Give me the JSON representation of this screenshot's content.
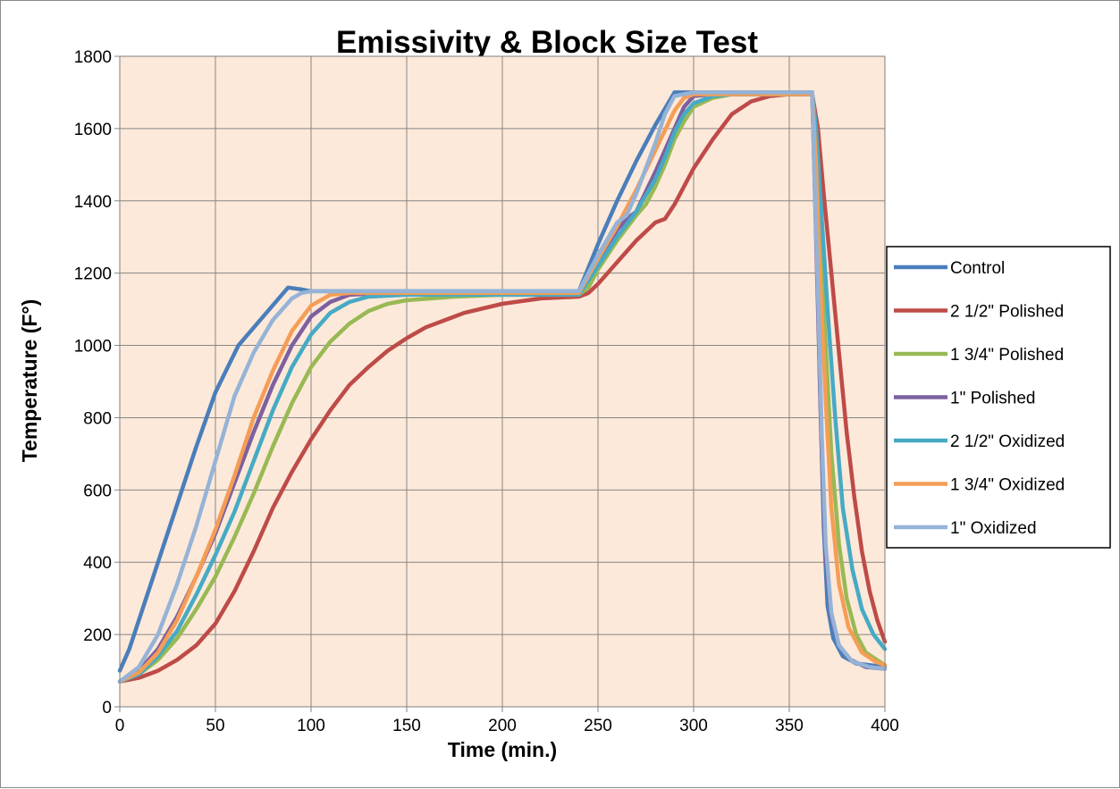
{
  "chart_data": {
    "type": "line",
    "title": "Emissivity & Block Size Test",
    "xlabel": "Time (min.)",
    "ylabel": "Temperature (F°)",
    "xlim": [
      0,
      400
    ],
    "ylim": [
      0,
      1800
    ],
    "xticks": [
      0,
      50,
      100,
      150,
      200,
      250,
      300,
      350,
      400
    ],
    "yticks": [
      0,
      200,
      400,
      600,
      800,
      1000,
      1200,
      1400,
      1600,
      1800
    ],
    "grid": true,
    "plot_background": "#fde9d9",
    "legend_position": "right",
    "series": [
      {
        "name": "Control",
        "color": "#4a7ebb",
        "points": [
          [
            0,
            100
          ],
          [
            5,
            160
          ],
          [
            10,
            240
          ],
          [
            20,
            400
          ],
          [
            30,
            560
          ],
          [
            40,
            720
          ],
          [
            50,
            870
          ],
          [
            62,
            1000
          ],
          [
            75,
            1080
          ],
          [
            88,
            1160
          ],
          [
            95,
            1155
          ],
          [
            100,
            1150
          ],
          [
            150,
            1150
          ],
          [
            200,
            1150
          ],
          [
            240,
            1150
          ],
          [
            250,
            1280
          ],
          [
            260,
            1400
          ],
          [
            270,
            1510
          ],
          [
            280,
            1610
          ],
          [
            290,
            1700
          ],
          [
            300,
            1700
          ],
          [
            350,
            1700
          ],
          [
            362,
            1700
          ],
          [
            364,
            1400
          ],
          [
            366,
            900
          ],
          [
            368,
            500
          ],
          [
            370,
            280
          ],
          [
            373,
            190
          ],
          [
            378,
            140
          ],
          [
            385,
            120
          ],
          [
            400,
            110
          ]
        ]
      },
      {
        "name": "2 1/2\" Polished",
        "color": "#be4b48",
        "points": [
          [
            0,
            70
          ],
          [
            10,
            80
          ],
          [
            20,
            100
          ],
          [
            30,
            130
          ],
          [
            40,
            170
          ],
          [
            50,
            230
          ],
          [
            60,
            320
          ],
          [
            70,
            430
          ],
          [
            80,
            550
          ],
          [
            90,
            650
          ],
          [
            100,
            740
          ],
          [
            110,
            820
          ],
          [
            120,
            890
          ],
          [
            130,
            940
          ],
          [
            140,
            985
          ],
          [
            150,
            1020
          ],
          [
            160,
            1050
          ],
          [
            180,
            1090
          ],
          [
            200,
            1115
          ],
          [
            220,
            1130
          ],
          [
            240,
            1135
          ],
          [
            245,
            1145
          ],
          [
            250,
            1170
          ],
          [
            260,
            1230
          ],
          [
            270,
            1290
          ],
          [
            280,
            1340
          ],
          [
            285,
            1350
          ],
          [
            290,
            1390
          ],
          [
            295,
            1440
          ],
          [
            300,
            1490
          ],
          [
            310,
            1570
          ],
          [
            320,
            1640
          ],
          [
            330,
            1675
          ],
          [
            340,
            1690
          ],
          [
            350,
            1695
          ],
          [
            362,
            1695
          ],
          [
            365,
            1600
          ],
          [
            368,
            1420
          ],
          [
            372,
            1200
          ],
          [
            376,
            980
          ],
          [
            380,
            760
          ],
          [
            384,
            580
          ],
          [
            388,
            430
          ],
          [
            392,
            320
          ],
          [
            396,
            240
          ],
          [
            400,
            180
          ]
        ]
      },
      {
        "name": "1 3/4\" Polished",
        "color": "#98b954",
        "points": [
          [
            0,
            70
          ],
          [
            10,
            90
          ],
          [
            20,
            130
          ],
          [
            30,
            190
          ],
          [
            40,
            270
          ],
          [
            50,
            360
          ],
          [
            60,
            470
          ],
          [
            70,
            590
          ],
          [
            80,
            720
          ],
          [
            90,
            840
          ],
          [
            100,
            940
          ],
          [
            110,
            1010
          ],
          [
            120,
            1060
          ],
          [
            130,
            1095
          ],
          [
            140,
            1115
          ],
          [
            150,
            1125
          ],
          [
            175,
            1135
          ],
          [
            200,
            1140
          ],
          [
            240,
            1140
          ],
          [
            245,
            1160
          ],
          [
            250,
            1210
          ],
          [
            260,
            1290
          ],
          [
            270,
            1360
          ],
          [
            275,
            1390
          ],
          [
            280,
            1440
          ],
          [
            285,
            1500
          ],
          [
            290,
            1570
          ],
          [
            295,
            1620
          ],
          [
            300,
            1660
          ],
          [
            310,
            1685
          ],
          [
            320,
            1695
          ],
          [
            362,
            1695
          ],
          [
            364,
            1550
          ],
          [
            366,
            1300
          ],
          [
            369,
            1000
          ],
          [
            372,
            700
          ],
          [
            376,
            450
          ],
          [
            380,
            300
          ],
          [
            385,
            200
          ],
          [
            390,
            150
          ],
          [
            400,
            115
          ]
        ]
      },
      {
        "name": "1\" Polished",
        "color": "#7d60a0",
        "points": [
          [
            0,
            70
          ],
          [
            10,
            100
          ],
          [
            20,
            160
          ],
          [
            30,
            250
          ],
          [
            40,
            360
          ],
          [
            50,
            480
          ],
          [
            60,
            620
          ],
          [
            70,
            760
          ],
          [
            80,
            890
          ],
          [
            90,
            1000
          ],
          [
            100,
            1080
          ],
          [
            110,
            1120
          ],
          [
            120,
            1140
          ],
          [
            140,
            1145
          ],
          [
            200,
            1145
          ],
          [
            240,
            1145
          ],
          [
            250,
            1230
          ],
          [
            260,
            1320
          ],
          [
            265,
            1350
          ],
          [
            270,
            1370
          ],
          [
            280,
            1480
          ],
          [
            290,
            1600
          ],
          [
            295,
            1660
          ],
          [
            300,
            1690
          ],
          [
            310,
            1695
          ],
          [
            362,
            1695
          ],
          [
            363,
            1500
          ],
          [
            365,
            1100
          ],
          [
            367,
            700
          ],
          [
            369,
            420
          ],
          [
            372,
            250
          ],
          [
            376,
            170
          ],
          [
            382,
            130
          ],
          [
            390,
            110
          ],
          [
            400,
            105
          ]
        ]
      },
      {
        "name": "2 1/2\" Oxidized",
        "color": "#46aac5",
        "points": [
          [
            0,
            70
          ],
          [
            10,
            90
          ],
          [
            20,
            140
          ],
          [
            30,
            210
          ],
          [
            40,
            310
          ],
          [
            50,
            420
          ],
          [
            60,
            540
          ],
          [
            70,
            680
          ],
          [
            80,
            820
          ],
          [
            90,
            940
          ],
          [
            100,
            1030
          ],
          [
            110,
            1090
          ],
          [
            120,
            1120
          ],
          [
            130,
            1135
          ],
          [
            150,
            1140
          ],
          [
            200,
            1140
          ],
          [
            240,
            1140
          ],
          [
            250,
            1220
          ],
          [
            260,
            1300
          ],
          [
            270,
            1370
          ],
          [
            280,
            1460
          ],
          [
            285,
            1520
          ],
          [
            290,
            1590
          ],
          [
            295,
            1640
          ],
          [
            300,
            1670
          ],
          [
            310,
            1690
          ],
          [
            320,
            1695
          ],
          [
            362,
            1695
          ],
          [
            364,
            1600
          ],
          [
            367,
            1350
          ],
          [
            370,
            1100
          ],
          [
            374,
            800
          ],
          [
            378,
            550
          ],
          [
            383,
            380
          ],
          [
            388,
            270
          ],
          [
            394,
            200
          ],
          [
            400,
            160
          ]
        ]
      },
      {
        "name": "1 3/4\" Oxidized",
        "color": "#f59d56",
        "points": [
          [
            0,
            70
          ],
          [
            10,
            95
          ],
          [
            20,
            150
          ],
          [
            30,
            240
          ],
          [
            40,
            360
          ],
          [
            50,
            490
          ],
          [
            60,
            640
          ],
          [
            70,
            800
          ],
          [
            80,
            930
          ],
          [
            90,
            1040
          ],
          [
            100,
            1110
          ],
          [
            110,
            1140
          ],
          [
            120,
            1145
          ],
          [
            150,
            1145
          ],
          [
            200,
            1145
          ],
          [
            240,
            1145
          ],
          [
            250,
            1240
          ],
          [
            260,
            1330
          ],
          [
            270,
            1430
          ],
          [
            280,
            1540
          ],
          [
            290,
            1650
          ],
          [
            295,
            1685
          ],
          [
            300,
            1695
          ],
          [
            362,
            1695
          ],
          [
            364,
            1500
          ],
          [
            366,
            1200
          ],
          [
            369,
            850
          ],
          [
            372,
            550
          ],
          [
            376,
            340
          ],
          [
            381,
            220
          ],
          [
            388,
            150
          ],
          [
            395,
            125
          ],
          [
            400,
            115
          ]
        ]
      },
      {
        "name": "1\" Oxidized",
        "color": "#95b3d7",
        "points": [
          [
            0,
            70
          ],
          [
            10,
            110
          ],
          [
            20,
            200
          ],
          [
            30,
            340
          ],
          [
            40,
            500
          ],
          [
            50,
            680
          ],
          [
            60,
            860
          ],
          [
            70,
            980
          ],
          [
            80,
            1070
          ],
          [
            90,
            1130
          ],
          [
            95,
            1145
          ],
          [
            100,
            1150
          ],
          [
            150,
            1150
          ],
          [
            200,
            1150
          ],
          [
            240,
            1150
          ],
          [
            250,
            1250
          ],
          [
            260,
            1340
          ],
          [
            265,
            1360
          ],
          [
            270,
            1420
          ],
          [
            280,
            1560
          ],
          [
            285,
            1640
          ],
          [
            290,
            1690
          ],
          [
            300,
            1700
          ],
          [
            362,
            1700
          ],
          [
            363,
            1500
          ],
          [
            365,
            1150
          ],
          [
            367,
            750
          ],
          [
            369,
            450
          ],
          [
            372,
            260
          ],
          [
            376,
            170
          ],
          [
            383,
            125
          ],
          [
            392,
            110
          ],
          [
            400,
            105
          ]
        ]
      }
    ]
  }
}
